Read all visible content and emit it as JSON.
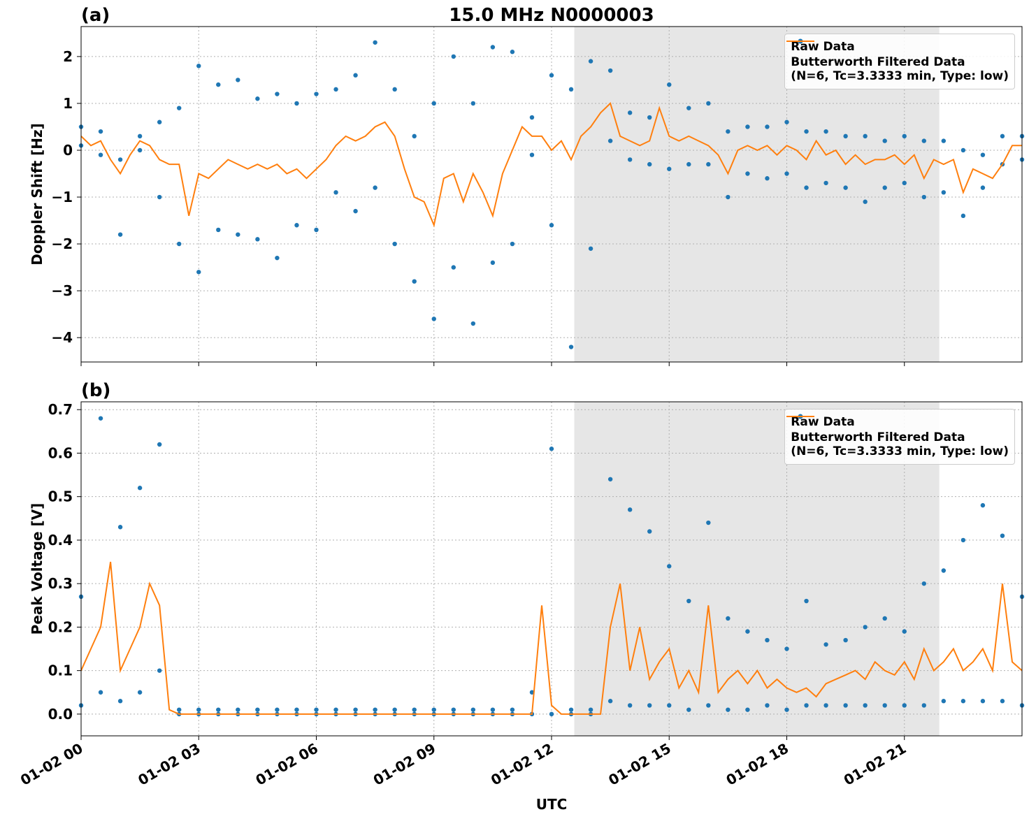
{
  "chart_data": [
    {
      "type": "combo",
      "panel_label": "(a)",
      "title": "15.0 MHz N0000003",
      "ylabel": "Doppler Shift [Hz]",
      "xlim": [
        0,
        24
      ],
      "ylim": [
        -4.52,
        2.64
      ],
      "yticks": [
        2,
        1,
        0,
        {
          "value": -1,
          "label": "−1"
        },
        {
          "value": -2,
          "label": "−2"
        },
        {
          "value": -3,
          "label": "−3"
        },
        {
          "value": -4,
          "label": "−4"
        }
      ],
      "grid": true,
      "shade": [
        12.58,
        21.89
      ],
      "legend": "upper right",
      "series": [
        {
          "name": "Raw Data",
          "kind": "scatter",
          "color": "#1f77b4",
          "x": [
            0,
            0,
            0.5,
            0.5,
            1,
            1,
            1.5,
            1.5,
            2,
            2,
            2.5,
            2.5,
            3,
            3,
            3.5,
            3.5,
            4,
            4,
            4.5,
            4.5,
            5,
            5,
            5.5,
            5.5,
            6,
            6,
            6.5,
            6.5,
            7,
            7,
            7.5,
            7.5,
            8,
            8,
            8.5,
            8.5,
            9,
            9,
            9.5,
            9.5,
            10,
            10,
            10.5,
            10.5,
            11,
            11,
            11.5,
            11.5,
            12,
            12,
            12.5,
            12.5,
            13,
            13,
            13.5,
            13.5,
            14,
            14,
            14.5,
            14.5,
            15,
            15,
            15.5,
            15.5,
            16,
            16,
            16.5,
            16.5,
            17,
            17,
            17.5,
            17.5,
            18,
            18,
            18.5,
            18.5,
            19,
            19,
            19.5,
            19.5,
            20,
            20,
            20.5,
            20.5,
            21,
            21,
            21.5,
            21.5,
            22,
            22,
            22.5,
            22.5,
            23,
            23,
            23.5,
            23.5,
            24,
            24
          ],
          "values": [
            0.5,
            0.1,
            0.4,
            -0.1,
            -0.2,
            -1.8,
            0.3,
            0.0,
            0.6,
            -1.0,
            0.9,
            -2.0,
            1.8,
            -2.6,
            1.4,
            -1.7,
            1.5,
            -1.8,
            1.1,
            -1.9,
            1.2,
            -2.3,
            1.0,
            -1.6,
            1.2,
            -1.7,
            1.3,
            -0.9,
            1.6,
            -1.3,
            2.3,
            -0.8,
            1.3,
            -2.0,
            0.3,
            -2.8,
            1.0,
            -3.6,
            2.0,
            -2.5,
            1.0,
            -3.7,
            2.2,
            -2.4,
            2.1,
            -2.0,
            0.7,
            -0.1,
            1.6,
            -1.6,
            1.3,
            -4.2,
            1.9,
            -2.1,
            1.7,
            0.2,
            0.8,
            -0.2,
            0.7,
            -0.3,
            1.4,
            -0.4,
            0.9,
            -0.3,
            1.0,
            -0.3,
            0.4,
            -1.0,
            0.5,
            -0.5,
            0.5,
            -0.6,
            0.6,
            -0.5,
            0.4,
            -0.8,
            0.4,
            -0.7,
            0.3,
            -0.8,
            0.3,
            -1.1,
            0.2,
            -0.8,
            0.3,
            -0.7,
            0.2,
            -1.0,
            0.2,
            -0.9,
            0.0,
            -1.4,
            -0.1,
            -0.8,
            0.3,
            -0.3,
            0.3,
            -0.2
          ]
        },
        {
          "name": "Butterworth Filtered Data\n(N=6, Tc=3.3333 min, Type: low)",
          "kind": "line",
          "color": "#ff7f0e",
          "x": [
            0,
            0.25,
            0.5,
            0.75,
            1,
            1.25,
            1.5,
            1.75,
            2,
            2.25,
            2.5,
            2.75,
            3,
            3.25,
            3.5,
            3.75,
            4,
            4.25,
            4.5,
            4.75,
            5,
            5.25,
            5.5,
            5.75,
            6,
            6.25,
            6.5,
            6.75,
            7,
            7.25,
            7.5,
            7.75,
            8,
            8.25,
            8.5,
            8.75,
            9,
            9.25,
            9.5,
            9.75,
            10,
            10.25,
            10.5,
            10.75,
            11,
            11.25,
            11.5,
            11.75,
            12,
            12.25,
            12.5,
            12.75,
            13,
            13.25,
            13.5,
            13.75,
            14,
            14.25,
            14.5,
            14.75,
            15,
            15.25,
            15.5,
            15.75,
            16,
            16.25,
            16.5,
            16.75,
            17,
            17.25,
            17.5,
            17.75,
            18,
            18.25,
            18.5,
            18.75,
            19,
            19.25,
            19.5,
            19.75,
            20,
            20.25,
            20.5,
            20.75,
            21,
            21.25,
            21.5,
            21.75,
            22,
            22.25,
            22.5,
            22.75,
            23,
            23.25,
            23.5,
            23.75,
            24
          ],
          "values": [
            0.3,
            0.1,
            0.2,
            -0.2,
            -0.5,
            -0.1,
            0.2,
            0.1,
            -0.2,
            -0.3,
            -0.3,
            -1.4,
            -0.5,
            -0.6,
            -0.4,
            -0.2,
            -0.3,
            -0.4,
            -0.3,
            -0.4,
            -0.3,
            -0.5,
            -0.4,
            -0.6,
            -0.4,
            -0.2,
            0.1,
            0.3,
            0.2,
            0.3,
            0.5,
            0.6,
            0.3,
            -0.4,
            -1.0,
            -1.1,
            -1.6,
            -0.6,
            -0.5,
            -1.1,
            -0.5,
            -0.9,
            -1.4,
            -0.5,
            0.0,
            0.5,
            0.3,
            0.3,
            0.0,
            0.2,
            -0.2,
            0.3,
            0.5,
            0.8,
            1.0,
            0.3,
            0.2,
            0.1,
            0.2,
            0.9,
            0.3,
            0.2,
            0.3,
            0.2,
            0.1,
            -0.1,
            -0.5,
            0.0,
            0.1,
            0.0,
            0.1,
            -0.1,
            0.1,
            0.0,
            -0.2,
            0.2,
            -0.1,
            0.0,
            -0.3,
            -0.1,
            -0.3,
            -0.2,
            -0.2,
            -0.1,
            -0.3,
            -0.1,
            -0.6,
            -0.2,
            -0.3,
            -0.2,
            -0.9,
            -0.4,
            -0.5,
            -0.6,
            -0.3,
            0.1,
            0.1
          ]
        }
      ]
    },
    {
      "type": "combo",
      "panel_label": "(b)",
      "ylabel": "Peak Voltage [V]",
      "xlabel": "UTC",
      "xlim": [
        0,
        24
      ],
      "ylim": [
        -0.05,
        0.718
      ],
      "xticks": [
        {
          "value": 0,
          "label": "01-02 00"
        },
        {
          "value": 3,
          "label": "01-02 03"
        },
        {
          "value": 6,
          "label": "01-02 06"
        },
        {
          "value": 9,
          "label": "01-02 09"
        },
        {
          "value": 12,
          "label": "01-02 12"
        },
        {
          "value": 15,
          "label": "01-02 15"
        },
        {
          "value": 18,
          "label": "01-02 18"
        },
        {
          "value": 21,
          "label": "01-02 21"
        }
      ],
      "yticks": [
        0.7,
        0.6,
        0.5,
        0.4,
        0.3,
        0.2,
        0.1,
        {
          "value": 0,
          "label": "0.0"
        }
      ],
      "grid": true,
      "shade": [
        12.58,
        21.89
      ],
      "legend": "upper right",
      "series": [
        {
          "name": "Raw Data",
          "kind": "scatter",
          "color": "#1f77b4",
          "x": [
            0,
            0,
            0.5,
            0.5,
            1,
            1,
            1.5,
            1.5,
            2,
            2,
            2.5,
            2.5,
            3,
            3,
            3.5,
            3.5,
            4,
            4,
            4.5,
            4.5,
            5,
            5,
            5.5,
            5.5,
            6,
            6,
            6.5,
            6.5,
            7,
            7,
            7.5,
            7.5,
            8,
            8,
            8.5,
            8.5,
            9,
            9,
            9.5,
            9.5,
            10,
            10,
            10.5,
            10.5,
            11,
            11,
            11.5,
            11.5,
            12,
            12,
            12.5,
            12.5,
            13,
            13,
            13.5,
            13.5,
            14,
            14,
            14.5,
            14.5,
            15,
            15,
            15.5,
            15.5,
            16,
            16,
            16.5,
            16.5,
            17,
            17,
            17.5,
            17.5,
            18,
            18,
            18.5,
            18.5,
            19,
            19,
            19.5,
            19.5,
            20,
            20,
            20.5,
            20.5,
            21,
            21,
            21.5,
            21.5,
            22,
            22,
            22.5,
            22.5,
            23,
            23,
            23.5,
            23.5,
            24,
            24
          ],
          "values": [
            0.27,
            0.02,
            0.68,
            0.05,
            0.43,
            0.03,
            0.52,
            0.05,
            0.62,
            0.1,
            0.01,
            0,
            0.01,
            0,
            0.01,
            0,
            0.01,
            0,
            0.01,
            0,
            0.01,
            0,
            0.01,
            0,
            0.01,
            0,
            0.01,
            0,
            0.01,
            0,
            0.01,
            0,
            0.01,
            0,
            0.01,
            0,
            0.01,
            0,
            0.01,
            0,
            0.01,
            0,
            0.01,
            0,
            0.01,
            0,
            0.05,
            0,
            0.61,
            0,
            0.01,
            0,
            0.01,
            0,
            0.54,
            0.03,
            0.47,
            0.02,
            0.42,
            0.02,
            0.34,
            0.02,
            0.26,
            0.01,
            0.44,
            0.02,
            0.22,
            0.01,
            0.19,
            0.01,
            0.17,
            0.02,
            0.15,
            0.01,
            0.26,
            0.02,
            0.16,
            0.02,
            0.17,
            0.02,
            0.2,
            0.02,
            0.22,
            0.02,
            0.19,
            0.02,
            0.3,
            0.02,
            0.33,
            0.03,
            0.4,
            0.03,
            0.48,
            0.03,
            0.41,
            0.03,
            0.27,
            0.02
          ]
        },
        {
          "name": "Butterworth Filtered Data\n(N=6, Tc=3.3333 min, Type: low)",
          "kind": "line",
          "color": "#ff7f0e",
          "x": [
            0,
            0.25,
            0.5,
            0.75,
            1,
            1.25,
            1.5,
            1.75,
            2,
            2.25,
            2.5,
            2.75,
            3,
            3.25,
            3.5,
            3.75,
            4,
            4.25,
            4.5,
            4.75,
            5,
            5.25,
            5.5,
            5.75,
            6,
            6.25,
            6.5,
            6.75,
            7,
            7.25,
            7.5,
            7.75,
            8,
            8.25,
            8.5,
            8.75,
            9,
            9.25,
            9.5,
            9.75,
            10,
            10.25,
            10.5,
            10.75,
            11,
            11.25,
            11.5,
            11.75,
            12,
            12.25,
            12.5,
            12.75,
            13,
            13.25,
            13.5,
            13.75,
            14,
            14.25,
            14.5,
            14.75,
            15,
            15.25,
            15.5,
            15.75,
            16,
            16.25,
            16.5,
            16.75,
            17,
            17.25,
            17.5,
            17.75,
            18,
            18.25,
            18.5,
            18.75,
            19,
            19.25,
            19.5,
            19.75,
            20,
            20.25,
            20.5,
            20.75,
            21,
            21.25,
            21.5,
            21.75,
            22,
            22.25,
            22.5,
            22.75,
            23,
            23.25,
            23.5,
            23.75,
            24
          ],
          "values": [
            0.1,
            0.15,
            0.2,
            0.35,
            0.1,
            0.15,
            0.2,
            0.3,
            0.25,
            0.01,
            0,
            0,
            0,
            0,
            0,
            0,
            0,
            0,
            0,
            0,
            0,
            0,
            0,
            0,
            0,
            0,
            0,
            0,
            0,
            0,
            0,
            0,
            0,
            0,
            0,
            0,
            0,
            0,
            0,
            0,
            0,
            0,
            0,
            0,
            0,
            0,
            0,
            0.25,
            0.02,
            0,
            0,
            0,
            0,
            0,
            0.2,
            0.3,
            0.1,
            0.2,
            0.08,
            0.12,
            0.15,
            0.06,
            0.1,
            0.05,
            0.25,
            0.05,
            0.08,
            0.1,
            0.07,
            0.1,
            0.06,
            0.08,
            0.06,
            0.05,
            0.06,
            0.04,
            0.07,
            0.08,
            0.09,
            0.1,
            0.08,
            0.12,
            0.1,
            0.09,
            0.12,
            0.08,
            0.15,
            0.1,
            0.12,
            0.15,
            0.1,
            0.12,
            0.15,
            0.1,
            0.3,
            0.12,
            0.1
          ]
        }
      ]
    }
  ]
}
